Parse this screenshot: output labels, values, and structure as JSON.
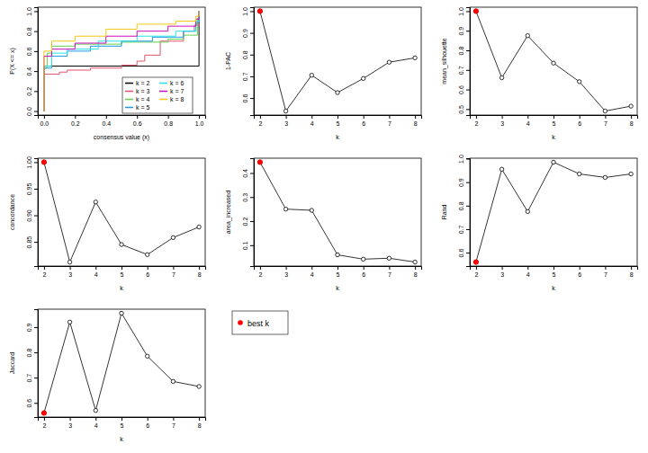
{
  "chart_data": [
    {
      "type": "step",
      "x_label": "consensus value (x)",
      "y_label": "P(X <= x)",
      "legend": "bottom-right",
      "xlim": [
        -0.04,
        1.04
      ],
      "ylim": [
        -0.04,
        1.04
      ],
      "xticks": [
        {
          "value": 0,
          "label": "0.0"
        },
        0.2,
        0.4,
        0.6,
        0.8,
        {
          "value": 1,
          "label": "1.0"
        }
      ],
      "yticks": [
        {
          "value": 0,
          "label": "0.0"
        },
        0.2,
        0.4,
        0.6,
        0.8,
        {
          "value": 1,
          "label": "1.0"
        }
      ],
      "series": [
        {
          "name": "k = 2",
          "color": "#000000",
          "x": [
            0,
            0,
            1,
            1
          ],
          "values": [
            0,
            0.45,
            0.45,
            1
          ]
        },
        {
          "name": "k = 3",
          "color": "#DF536B",
          "x": [
            0,
            0,
            0.1,
            0.15,
            0.3,
            0.5,
            0.6,
            0.65,
            0.75,
            0.9,
            0.97,
            1
          ],
          "values": [
            0,
            0.37,
            0.39,
            0.41,
            0.43,
            0.46,
            0.5,
            0.56,
            0.7,
            0.8,
            0.86,
            1
          ]
        },
        {
          "name": "k = 4",
          "color": "#61D04F",
          "x": [
            0,
            0,
            0.02,
            0.05,
            0.2,
            0.5,
            0.8,
            0.9,
            0.99,
            1
          ],
          "values": [
            0,
            0.43,
            0.58,
            0.65,
            0.67,
            0.69,
            0.72,
            0.76,
            0.93,
            1
          ]
        },
        {
          "name": "k = 5",
          "color": "#2297E6",
          "x": [
            0,
            0,
            0.05,
            0.15,
            0.3,
            0.5,
            0.7,
            0.9,
            0.98,
            1
          ],
          "values": [
            0,
            0.43,
            0.55,
            0.6,
            0.65,
            0.7,
            0.74,
            0.8,
            0.88,
            1
          ]
        },
        {
          "name": "k = 6",
          "color": "#28E2E5",
          "x": [
            0,
            0,
            0.05,
            0.15,
            0.35,
            0.6,
            0.85,
            0.98,
            1
          ],
          "values": [
            0,
            0.45,
            0.58,
            0.62,
            0.7,
            0.75,
            0.8,
            0.9,
            1
          ]
        },
        {
          "name": "k = 7",
          "color": "#CD0BBC",
          "x": [
            0,
            0,
            0.05,
            0.2,
            0.4,
            0.6,
            0.8,
            0.98,
            1
          ],
          "values": [
            0,
            0.55,
            0.62,
            0.68,
            0.75,
            0.8,
            0.85,
            0.92,
            1
          ]
        },
        {
          "name": "k = 8",
          "color": "#F5C710",
          "x": [
            0,
            0,
            0.05,
            0.2,
            0.4,
            0.6,
            0.85,
            0.98,
            1
          ],
          "values": [
            0,
            0.6,
            0.7,
            0.75,
            0.82,
            0.87,
            0.9,
            0.95,
            1
          ]
        }
      ]
    },
    {
      "type": "line",
      "marker": "circle",
      "x_label": "k",
      "y_label": "1-PAC",
      "best_k": 2,
      "x": [
        2,
        3,
        4,
        5,
        6,
        7,
        8
      ],
      "values": [
        1.0,
        0.54,
        0.705,
        0.625,
        0.69,
        0.765,
        0.785
      ],
      "xlim": [
        1.76,
        8.24
      ],
      "ylim": [
        0.5216,
        1.0184
      ],
      "xticks": [
        2,
        3,
        4,
        5,
        6,
        7,
        8
      ],
      "yticks": [
        0.6,
        0.7,
        0.8,
        0.9,
        {
          "value": 1,
          "label": "1.0"
        }
      ]
    },
    {
      "type": "line",
      "marker": "circle",
      "x_label": "k",
      "y_label": "mean_silhouette",
      "best_k": 2,
      "x": [
        2,
        3,
        4,
        5,
        6,
        7,
        8
      ],
      "values": [
        1.0,
        0.66,
        0.875,
        0.735,
        0.64,
        0.49,
        0.515
      ],
      "xlim": [
        1.76,
        8.24
      ],
      "ylim": [
        0.4696,
        1.0204
      ],
      "xticks": [
        2,
        3,
        4,
        5,
        6,
        7,
        8
      ],
      "yticks": [
        0.5,
        0.6,
        0.7,
        0.8,
        0.9,
        {
          "value": 1,
          "label": "1.0"
        }
      ]
    },
    {
      "type": "line",
      "marker": "circle",
      "x_label": "k",
      "y_label": "concordance",
      "best_k": 2,
      "x": [
        2,
        3,
        4,
        5,
        6,
        7,
        8
      ],
      "values": [
        1.0,
        0.812,
        0.925,
        0.845,
        0.826,
        0.858,
        0.878
      ],
      "xlim": [
        1.76,
        8.24
      ],
      "ylim": [
        0.8045,
        1.0075
      ],
      "xticks": [
        2,
        3,
        4,
        5,
        6,
        7,
        8
      ],
      "yticks": [
        0.85,
        {
          "value": 0.9,
          "label": "0.90"
        },
        0.95,
        {
          "value": 1,
          "label": "1.00"
        }
      ]
    },
    {
      "type": "line",
      "marker": "circle",
      "x_label": "k",
      "y_label": "area_increased",
      "best_k": 2,
      "x": [
        2,
        3,
        4,
        5,
        6,
        7,
        8
      ],
      "values": [
        0.445,
        0.25,
        0.245,
        0.06,
        0.042,
        0.046,
        0.03
      ],
      "xlim": [
        1.76,
        8.24
      ],
      "ylim": [
        0.0134,
        0.4616
      ],
      "xticks": [
        2,
        3,
        4,
        5,
        6,
        7,
        8
      ],
      "yticks": [
        0.1,
        0.2,
        0.3,
        0.4
      ]
    },
    {
      "type": "line",
      "marker": "circle",
      "x_label": "k",
      "y_label": "Rand",
      "best_k": 2,
      "x": [
        2,
        3,
        4,
        5,
        6,
        7,
        8
      ],
      "values": [
        0.56,
        0.955,
        0.775,
        0.985,
        0.935,
        0.92,
        0.935
      ],
      "xlim": [
        1.76,
        8.24
      ],
      "ylim": [
        0.543,
        1.002
      ],
      "xticks": [
        2,
        3,
        4,
        5,
        6,
        7,
        8
      ],
      "yticks": [
        0.6,
        0.7,
        0.8,
        0.9,
        {
          "value": 1,
          "label": "1.0"
        }
      ]
    },
    {
      "type": "line",
      "marker": "circle",
      "x_label": "k",
      "y_label": "Jaccard",
      "best_k": 2,
      "x": [
        2,
        3,
        4,
        5,
        6,
        7,
        8
      ],
      "values": [
        0.56,
        0.92,
        0.57,
        0.955,
        0.785,
        0.685,
        0.665
      ],
      "xlim": [
        1.76,
        8.24
      ],
      "ylim": [
        0.544,
        0.971
      ],
      "xticks": [
        2,
        3,
        4,
        5,
        6,
        7,
        8
      ],
      "yticks": [
        0.6,
        0.7,
        0.8,
        0.9
      ]
    }
  ],
  "best_k_legend": {
    "label": "best k",
    "color": "#FF0000"
  }
}
